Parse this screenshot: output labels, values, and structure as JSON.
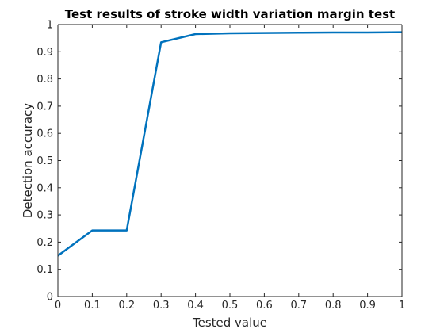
{
  "chart_data": {
    "type": "line",
    "title": "Test results of stroke width variation margin test",
    "xlabel": "Tested value",
    "ylabel": "Detection accuracy",
    "xlim": [
      0,
      1
    ],
    "ylim": [
      0,
      1
    ],
    "x_ticks": [
      "0",
      "0.1",
      "0.2",
      "0.3",
      "0.4",
      "0.5",
      "0.6",
      "0.7",
      "0.8",
      "0.9",
      "1"
    ],
    "y_ticks": [
      "0",
      "0.1",
      "0.2",
      "0.3",
      "0.4",
      "0.5",
      "0.6",
      "0.7",
      "0.8",
      "0.9",
      "1"
    ],
    "grid": false,
    "box": true,
    "series": [
      {
        "color": "#0072BD",
        "x": [
          0,
          0.1,
          0.2,
          0.3,
          0.4,
          0.5,
          0.6,
          0.7,
          0.8,
          0.9,
          1.0
        ],
        "y": [
          0.15,
          0.243,
          0.243,
          0.935,
          0.965,
          0.968,
          0.969,
          0.97,
          0.971,
          0.971,
          0.972
        ]
      }
    ]
  }
}
